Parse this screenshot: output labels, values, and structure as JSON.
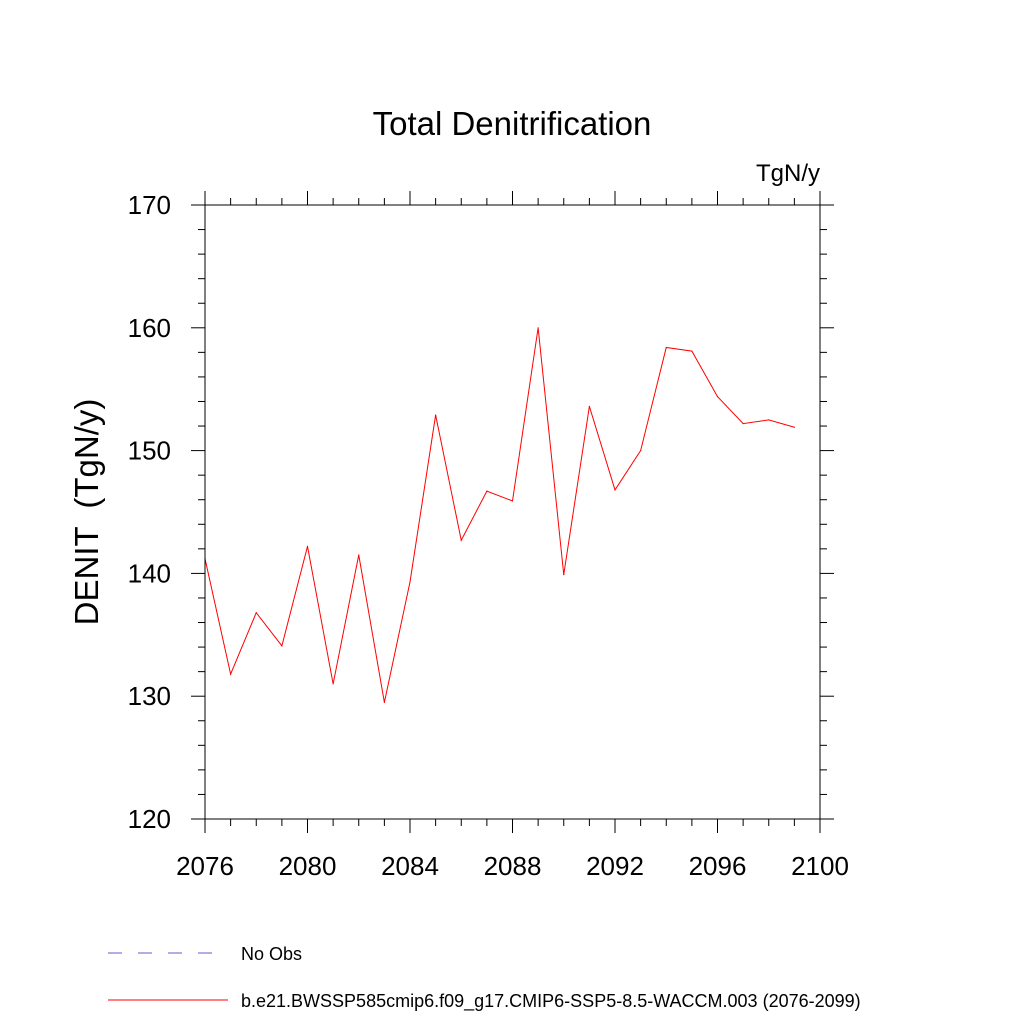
{
  "chart_data": {
    "type": "line",
    "title": "Total Denitrification",
    "units": "TgN/y",
    "ylabel": "DENIT  (TgN/y)",
    "xlabel": "",
    "xlim": [
      2076,
      2100
    ],
    "ylim": [
      120,
      170
    ],
    "x_ticks": [
      2076,
      2080,
      2084,
      2088,
      2092,
      2096,
      2100
    ],
    "y_ticks": [
      120,
      130,
      140,
      150,
      160,
      170
    ],
    "x_minor_step": 1,
    "y_minor_step": 2,
    "grid": false,
    "legend_position": "bottom-left",
    "series": [
      {
        "name": "No Obs",
        "color": "#6a5acd",
        "dash": "dashed",
        "x": [],
        "y": []
      },
      {
        "name": "b.e21.BWSSP585cmip6.f09_g17.CMIP6-SSP5-8.5-WACCM.003 (2076-2099)",
        "color": "#ff0000",
        "dash": "solid",
        "x": [
          2076,
          2077,
          2078,
          2079,
          2080,
          2081,
          2082,
          2083,
          2084,
          2085,
          2086,
          2087,
          2088,
          2089,
          2090,
          2091,
          2092,
          2093,
          2094,
          2095,
          2096,
          2097,
          2098,
          2099
        ],
        "y": [
          141.2,
          131.8,
          136.8,
          134.1,
          142.2,
          131.0,
          141.5,
          129.5,
          139.3,
          152.9,
          142.7,
          146.7,
          145.9,
          160.0,
          139.9,
          153.6,
          146.8,
          150.0,
          158.4,
          158.1,
          154.4,
          152.2,
          152.5,
          151.9
        ]
      }
    ]
  }
}
